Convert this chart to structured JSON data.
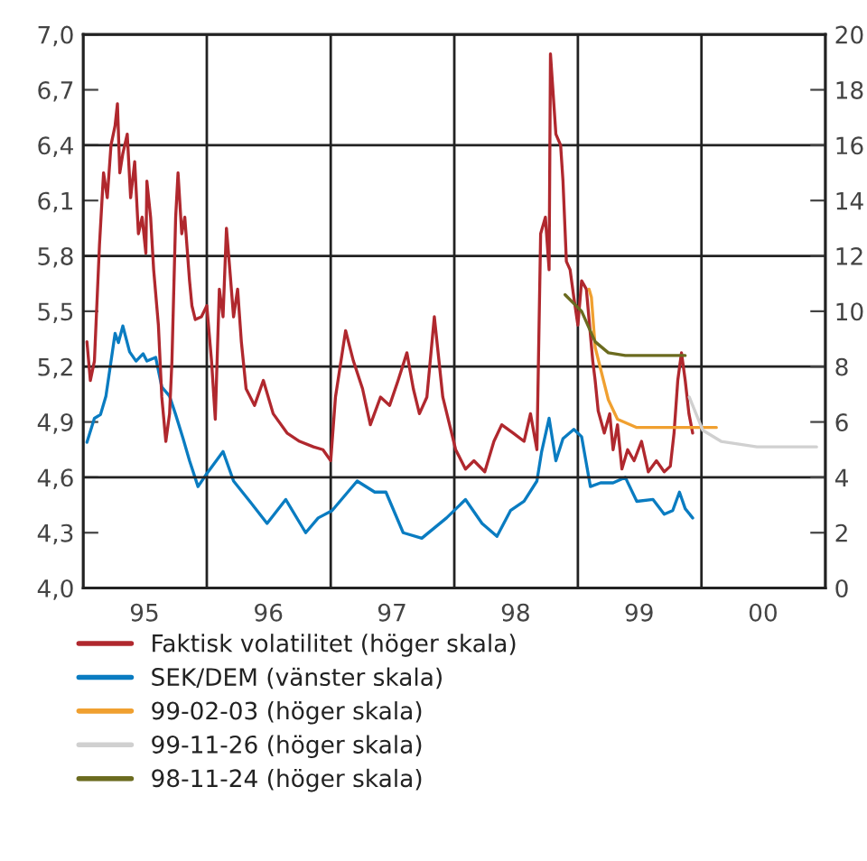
{
  "chart_data": {
    "type": "line",
    "xlim": [
      "1995-01-01",
      "2001-01-01"
    ],
    "xticks": [
      {
        "value": "1995-07-01",
        "label": "95"
      },
      {
        "value": "1996-01-01",
        "label": null
      },
      {
        "value": "1996-07-01",
        "label": "96"
      },
      {
        "value": "1997-01-01",
        "label": null
      },
      {
        "value": "1997-07-01",
        "label": "97"
      },
      {
        "value": "1998-01-01",
        "label": null
      },
      {
        "value": "1998-07-01",
        "label": "98"
      },
      {
        "value": "1999-01-01",
        "label": null
      },
      {
        "value": "1999-07-01",
        "label": "99"
      },
      {
        "value": "2000-01-01",
        "label": null
      },
      {
        "value": "2000-07-01",
        "label": "00"
      }
    ],
    "ylim": [
      4.0,
      7.0
    ],
    "yticks": [
      {
        "value": 4.0,
        "label": "4,0"
      },
      {
        "value": 4.3,
        "label": "4,3"
      },
      {
        "value": 4.6,
        "label": "4,6"
      },
      {
        "value": 4.9,
        "label": "4,9"
      },
      {
        "value": 5.2,
        "label": "5,2"
      },
      {
        "value": 5.5,
        "label": "5,5"
      },
      {
        "value": 5.8,
        "label": "5,8"
      },
      {
        "value": 6.1,
        "label": "6,1"
      },
      {
        "value": 6.4,
        "label": "6,4"
      },
      {
        "value": 6.7,
        "label": "6,7"
      },
      {
        "value": 7.0,
        "label": "7,0"
      }
    ],
    "y2lim": [
      0,
      20
    ],
    "y2ticks": [
      0,
      2,
      4,
      6,
      8,
      10,
      12,
      14,
      16,
      18,
      20
    ],
    "grid": true,
    "legend": "bottom",
    "series": [
      {
        "name": "Faktisk volatilitet (höger skala)",
        "color": "#b0282e",
        "axis": "y2",
        "x": [
          "1995-01-12",
          "1995-01-22",
          "1995-02-03",
          "1995-02-18",
          "1995-03-02",
          "1995-03-13",
          "1995-03-24",
          "1995-04-05",
          "1995-04-12",
          "1995-04-19",
          "1995-04-28",
          "1995-05-11",
          "1995-05-21",
          "1995-06-02",
          "1995-06-13",
          "1995-06-24",
          "1995-07-05",
          "1995-07-08",
          "1995-07-19",
          "1995-07-28",
          "1995-08-11",
          "1995-08-21",
          "1995-09-02",
          "1995-09-13",
          "1995-09-20",
          "1995-10-01",
          "1995-10-08",
          "1995-10-19",
          "1995-10-28",
          "1995-11-11",
          "1995-11-18",
          "1995-11-28",
          "1995-12-16",
          "1996-01-01",
          "1996-01-15",
          "1996-01-26",
          "1996-02-07",
          "1996-02-18",
          "1996-02-28",
          "1996-03-09",
          "1996-03-20",
          "1996-04-01",
          "1996-04-12",
          "1996-04-26",
          "1996-05-21",
          "1996-06-16",
          "1996-07-15",
          "1996-08-25",
          "1996-10-01",
          "1996-11-11",
          "1996-12-09",
          "1997-01-01",
          "1997-01-15",
          "1997-02-14",
          "1997-03-09",
          "1997-04-05",
          "1997-04-28",
          "1997-05-28",
          "1997-06-24",
          "1997-07-19",
          "1997-08-14",
          "1997-09-02",
          "1997-09-20",
          "1997-10-12",
          "1997-11-03",
          "1997-11-28",
          "1998-01-05",
          "1998-02-03",
          "1998-02-28",
          "1998-04-01",
          "1998-04-28",
          "1998-05-21",
          "1998-06-24",
          "1998-07-26",
          "1998-08-14",
          "1998-09-02",
          "1998-09-13",
          "1998-09-27",
          "1998-10-08",
          "1998-10-12",
          "1998-10-28",
          "1998-11-11",
          "1998-11-18",
          "1998-11-28",
          "1998-12-09",
          "1998-12-20",
          "1999-01-01",
          "1999-01-12",
          "1999-01-26",
          "1999-02-14",
          "1999-02-21",
          "1999-03-02",
          "1999-03-20",
          "1999-04-05",
          "1999-04-15",
          "1999-04-28",
          "1999-05-11",
          "1999-05-28",
          "1999-06-16",
          "1999-07-08",
          "1999-07-28",
          "1999-08-21",
          "1999-09-13",
          "1999-10-01",
          "1999-10-12",
          "1999-10-23",
          "1999-11-03",
          "1999-11-14",
          "1999-11-25",
          "1999-12-06"
        ],
        "values": [
          8.9,
          7.5,
          8.2,
          12.4,
          15.0,
          14.1,
          16.0,
          16.7,
          17.5,
          15.0,
          15.7,
          16.4,
          14.1,
          15.4,
          12.8,
          13.4,
          12.1,
          14.7,
          13.4,
          11.5,
          9.5,
          6.9,
          5.3,
          6.3,
          8.2,
          13.4,
          15.0,
          12.8,
          13.4,
          11.1,
          10.2,
          9.7,
          9.8,
          10.2,
          8.2,
          6.1,
          10.8,
          9.8,
          13.0,
          11.5,
          9.8,
          10.8,
          8.9,
          7.2,
          6.6,
          7.5,
          6.3,
          5.6,
          5.3,
          5.1,
          5.0,
          4.6,
          6.9,
          9.3,
          8.2,
          7.2,
          5.9,
          6.9,
          6.6,
          7.5,
          8.5,
          7.2,
          6.3,
          6.9,
          9.8,
          6.9,
          5.0,
          4.3,
          4.6,
          4.2,
          5.3,
          5.9,
          5.6,
          5.3,
          6.3,
          5.0,
          12.8,
          13.4,
          11.5,
          19.3,
          16.4,
          16.0,
          14.7,
          11.8,
          11.5,
          10.5,
          9.5,
          11.1,
          10.8,
          8.2,
          7.5,
          6.4,
          5.6,
          6.3,
          5.0,
          5.9,
          4.3,
          5.0,
          4.6,
          5.3,
          4.2,
          4.6,
          4.2,
          4.4,
          5.6,
          7.5,
          8.5,
          7.5,
          6.3,
          5.6
        ]
      },
      {
        "name": "SEK/DEM (vänster skala)",
        "color": "#0a7cc1",
        "x": [
          "1995-01-12",
          "1995-02-03",
          "1995-02-21",
          "1995-03-09",
          "1995-04-05",
          "1995-04-15",
          "1995-04-28",
          "1995-05-18",
          "1995-06-06",
          "1995-06-27",
          "1995-07-08",
          "1995-08-03",
          "1995-08-21",
          "1995-09-13",
          "1995-10-01",
          "1995-10-23",
          "1995-11-11",
          "1995-12-06",
          "1996-01-01",
          "1996-02-18",
          "1996-03-20",
          "1996-05-07",
          "1996-06-27",
          "1996-08-21",
          "1996-10-19",
          "1996-11-25",
          "1997-01-05",
          "1997-03-20",
          "1997-05-11",
          "1997-06-13",
          "1997-08-03",
          "1997-09-27",
          "1997-12-09",
          "1998-02-03",
          "1998-03-24",
          "1998-05-07",
          "1998-06-16",
          "1998-07-26",
          "1998-09-02",
          "1998-09-16",
          "1998-10-08",
          "1998-10-28",
          "1998-11-18",
          "1998-12-20",
          "1999-01-12",
          "1999-02-07",
          "1999-03-09",
          "1999-04-15",
          "1999-05-21",
          "1999-06-24",
          "1999-08-11",
          "1999-09-13",
          "1999-10-08",
          "1999-10-28",
          "1999-11-14",
          "1999-12-06"
        ],
        "values": [
          4.79,
          4.92,
          4.94,
          5.04,
          5.38,
          5.33,
          5.42,
          5.28,
          5.23,
          5.27,
          5.23,
          5.25,
          5.09,
          5.04,
          4.94,
          4.81,
          4.69,
          4.55,
          4.62,
          4.74,
          4.58,
          4.47,
          4.35,
          4.48,
          4.3,
          4.38,
          4.42,
          4.58,
          4.52,
          4.52,
          4.3,
          4.27,
          4.38,
          4.48,
          4.35,
          4.28,
          4.42,
          4.47,
          4.58,
          4.74,
          4.92,
          4.69,
          4.81,
          4.86,
          4.82,
          4.55,
          4.57,
          4.57,
          4.6,
          4.47,
          4.48,
          4.4,
          4.42,
          4.52,
          4.43,
          4.38
        ]
      },
      {
        "name": "99-02-03 (höger skala)",
        "color": "#f0a030",
        "axis": "y2",
        "x": [
          "1999-02-03",
          "1999-02-10",
          "1999-02-21",
          "1999-04-01",
          "1999-04-28",
          "1999-06-24",
          "1999-09-20",
          "2000-02-14"
        ],
        "values": [
          10.8,
          10.5,
          8.7,
          6.8,
          6.1,
          5.8,
          5.8,
          5.8
        ]
      },
      {
        "name": "99-11-26 (höger skala)",
        "color": "#d0d0d0",
        "axis": "y2",
        "x": [
          "1999-11-26",
          "2000-01-05",
          "2000-02-28",
          "2000-06-13",
          "2000-12-06"
        ],
        "values": [
          6.9,
          5.7,
          5.3,
          5.1,
          5.1
        ]
      },
      {
        "name": "98-11-24 (höger skala)",
        "color": "#6b6b1f",
        "axis": "y2",
        "x": [
          "1998-11-24",
          "1999-01-12",
          "1999-02-21",
          "1999-04-01",
          "1999-05-21",
          "1999-11-14"
        ],
        "values": [
          10.6,
          10.0,
          8.9,
          8.5,
          8.4,
          8.4
        ]
      }
    ]
  }
}
